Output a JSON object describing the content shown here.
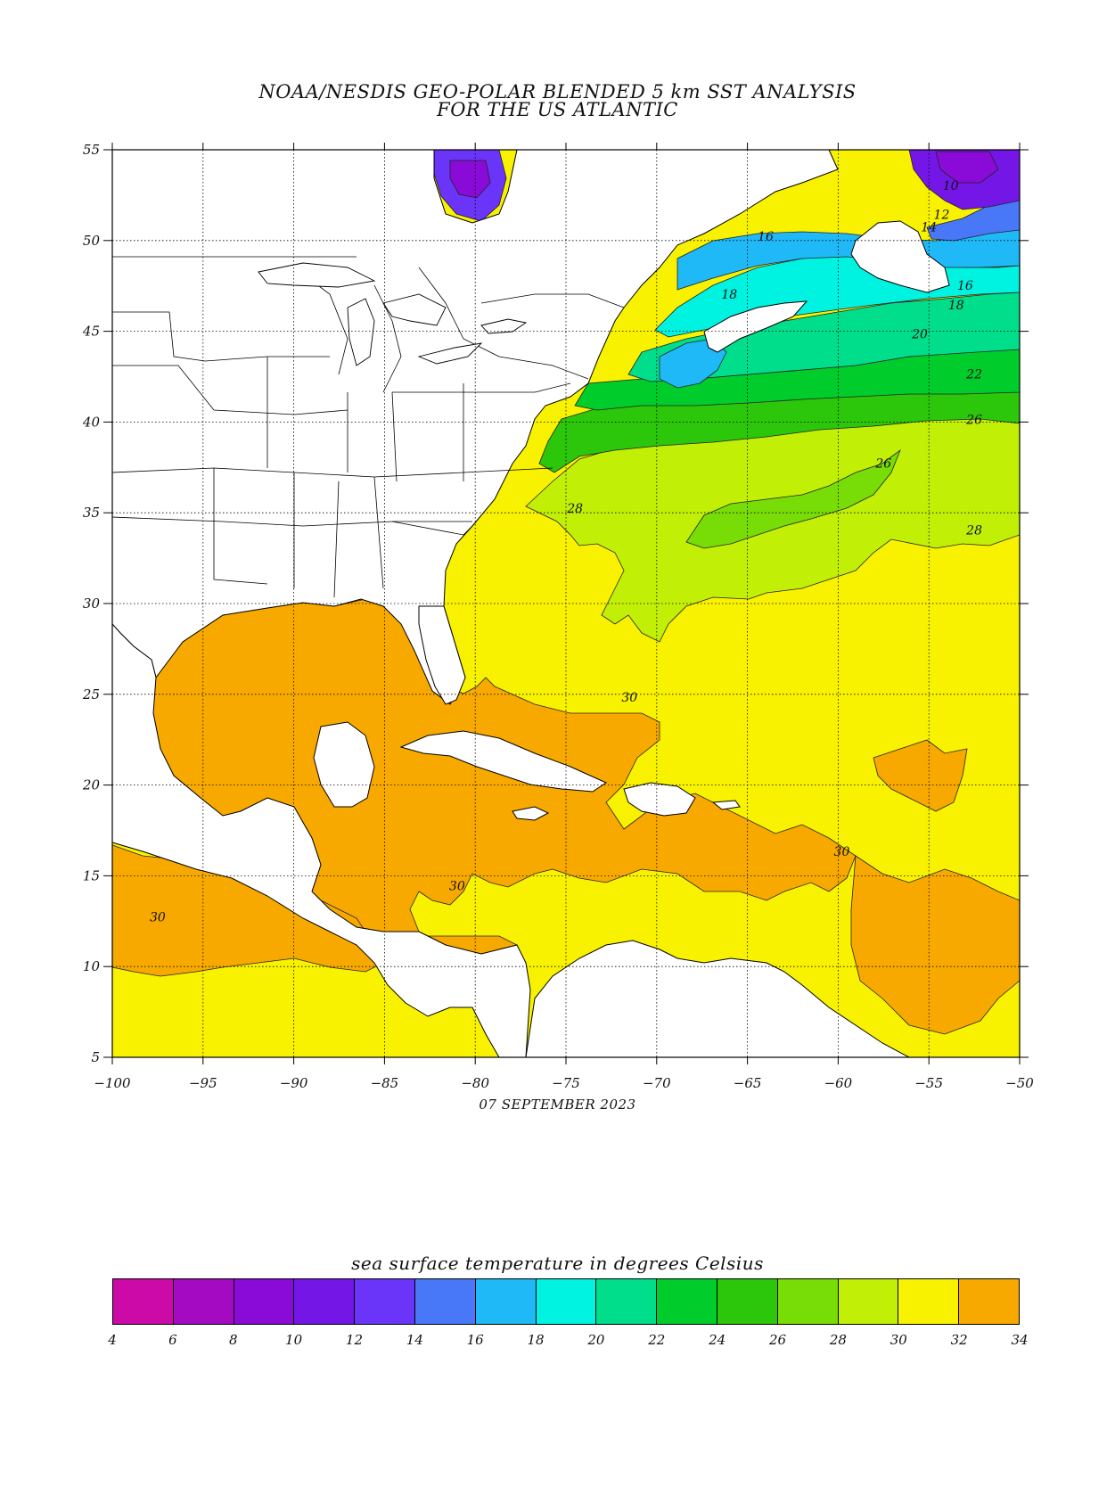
{
  "title": {
    "line1": "NOAA/NESDIS GEO-POLAR BLENDED 5 km SST ANALYSIS",
    "line2": "FOR THE US ATLANTIC"
  },
  "date": "07 SEPTEMBER 2023",
  "map": {
    "lon_range": [
      -100,
      -50
    ],
    "lat_range": [
      5,
      55
    ],
    "lon_ticks": [
      "-100",
      "-95",
      "-90",
      "-85",
      "-80",
      "-75",
      "-70",
      "-65",
      "-60",
      "-55",
      "-50"
    ],
    "lat_ticks": [
      "5",
      "10",
      "15",
      "20",
      "25",
      "30",
      "35",
      "40",
      "45",
      "50",
      "55"
    ],
    "grid": "dotted",
    "contour_labels": [
      {
        "text": "10",
        "lon": -53.8,
        "lat": 52.8
      },
      {
        "text": "12",
        "lon": -54.3,
        "lat": 51.2
      },
      {
        "text": "14",
        "lon": -55.0,
        "lat": 50.5
      },
      {
        "text": "16",
        "lon": -64.0,
        "lat": 50.0
      },
      {
        "text": "16",
        "lon": -53.0,
        "lat": 47.3
      },
      {
        "text": "18",
        "lon": -66.0,
        "lat": 46.8
      },
      {
        "text": "18",
        "lon": -53.5,
        "lat": 46.2
      },
      {
        "text": "20",
        "lon": -55.5,
        "lat": 44.6
      },
      {
        "text": "22",
        "lon": -52.5,
        "lat": 42.4
      },
      {
        "text": "26",
        "lon": -52.5,
        "lat": 39.9
      },
      {
        "text": "26",
        "lon": -57.5,
        "lat": 37.5
      },
      {
        "text": "28",
        "lon": -74.5,
        "lat": 35.0
      },
      {
        "text": "28",
        "lon": -52.5,
        "lat": 33.8
      },
      {
        "text": "30",
        "lon": -71.5,
        "lat": 24.6
      },
      {
        "text": "30",
        "lon": -59.8,
        "lat": 16.1
      },
      {
        "text": "30",
        "lon": -81.0,
        "lat": 14.2
      },
      {
        "text": "30",
        "lon": -97.5,
        "lat": 12.5
      }
    ]
  },
  "colorbar": {
    "title": "sea surface temperature in degrees Celsius",
    "labels": [
      "4",
      "6",
      "8",
      "10",
      "12",
      "14",
      "16",
      "18",
      "20",
      "22",
      "24",
      "26",
      "28",
      "30",
      "32",
      "34"
    ],
    "colors": [
      "#cc0aa8",
      "#a40ac2",
      "#8a0ad8",
      "#7417e6",
      "#6a35f8",
      "#4878f8",
      "#1fb9f8",
      "#00f2e0",
      "#00de8c",
      "#00cc2c",
      "#2cc60a",
      "#78dc06",
      "#c2ef06",
      "#f8f200",
      "#f8a900",
      "#f87700"
    ]
  }
}
